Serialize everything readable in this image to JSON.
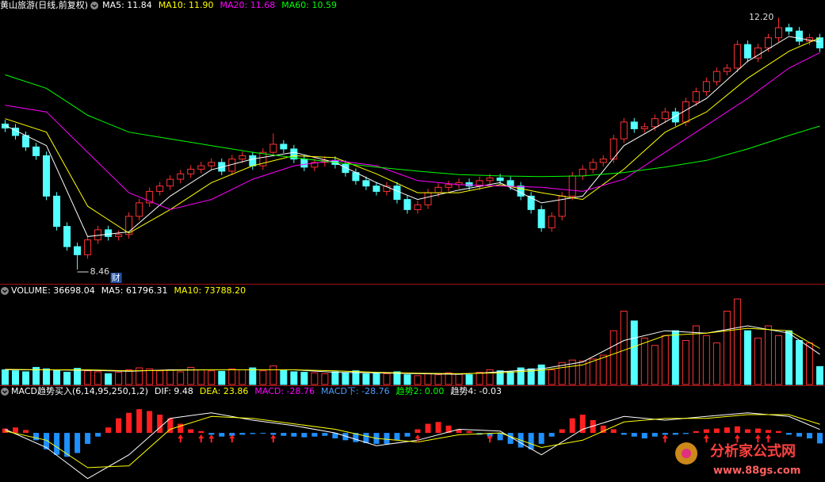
{
  "chart_data": [
    {
      "type": "candlestick",
      "title": "黄山旅游(日线,前复权)",
      "legend": [
        {
          "text": "MA5: 11.84",
          "color": "#ffffff"
        },
        {
          "text": "MA10: 11.90",
          "color": "#ffff00"
        },
        {
          "text": "MA20: 11.68",
          "color": "#ff00ff"
        },
        {
          "text": "MA60: 10.59",
          "color": "#00ff00"
        }
      ],
      "open": [
        10.62,
        10.56,
        10.45,
        10.28,
        10.15,
        9.55,
        9.1,
        8.8,
        8.68,
        8.9,
        9.05,
        8.95,
        8.98,
        9.25,
        9.45,
        9.62,
        9.7,
        9.8,
        9.88,
        9.95,
        10.0,
        10.05,
        9.92,
        10.1,
        10.15,
        10.0,
        10.2,
        10.32,
        10.25,
        10.1,
        9.98,
        10.05,
        10.08,
        10.02,
        9.9,
        9.78,
        9.7,
        9.62,
        9.7,
        9.5,
        9.35,
        9.42,
        9.6,
        9.68,
        9.72,
        9.75,
        9.7,
        9.78,
        9.82,
        9.78,
        9.7,
        9.55,
        9.35,
        9.08,
        9.25,
        9.55,
        9.85,
        9.95,
        10.05,
        10.1,
        10.4,
        10.65,
        10.55,
        10.58,
        10.7,
        10.8,
        10.65,
        10.95,
        11.1,
        11.25,
        11.4,
        11.45,
        11.8,
        11.6,
        11.75,
        11.9,
        12.05,
        12.0,
        11.85,
        11.9
      ],
      "high": [
        10.68,
        10.62,
        10.51,
        10.34,
        10.21,
        9.61,
        9.16,
        8.86,
        8.96,
        9.11,
        9.11,
        9.04,
        9.31,
        9.51,
        9.68,
        9.76,
        9.86,
        9.94,
        10.01,
        10.06,
        10.11,
        10.11,
        10.16,
        10.21,
        10.21,
        10.26,
        10.48,
        10.38,
        10.31,
        10.16,
        10.11,
        10.14,
        10.14,
        10.08,
        9.96,
        9.84,
        9.76,
        9.76,
        9.76,
        9.56,
        9.48,
        9.66,
        9.74,
        9.78,
        9.81,
        9.81,
        9.84,
        9.88,
        9.88,
        9.84,
        9.76,
        9.61,
        9.41,
        9.31,
        9.61,
        9.91,
        10.01,
        10.11,
        10.16,
        10.46,
        10.71,
        10.71,
        10.64,
        10.76,
        10.86,
        10.86,
        11.01,
        11.16,
        11.31,
        11.46,
        11.51,
        11.86,
        11.86,
        11.81,
        11.96,
        12.2,
        12.11,
        12.06,
        11.96,
        11.96
      ],
      "low": [
        10.5,
        10.39,
        10.22,
        10.09,
        9.49,
        9.04,
        8.74,
        8.46,
        8.62,
        8.84,
        8.89,
        8.89,
        8.92,
        9.19,
        9.39,
        9.56,
        9.64,
        9.74,
        9.82,
        9.89,
        9.94,
        9.86,
        9.86,
        10.04,
        9.94,
        9.94,
        10.14,
        10.19,
        10.04,
        9.92,
        9.92,
        9.99,
        9.96,
        9.84,
        9.72,
        9.64,
        9.56,
        9.56,
        9.44,
        9.29,
        9.29,
        9.36,
        9.54,
        9.62,
        9.66,
        9.64,
        9.64,
        9.72,
        9.72,
        9.64,
        9.49,
        9.29,
        9.02,
        9.02,
        9.19,
        9.49,
        9.79,
        9.89,
        9.99,
        10.04,
        10.34,
        10.49,
        10.49,
        10.52,
        10.64,
        10.59,
        10.59,
        10.89,
        11.04,
        11.19,
        11.34,
        11.39,
        11.54,
        11.54,
        11.69,
        11.84,
        11.94,
        11.79,
        11.79,
        11.69
      ],
      "close": [
        10.56,
        10.45,
        10.28,
        10.15,
        9.55,
        9.1,
        8.8,
        8.68,
        8.9,
        9.05,
        8.95,
        8.98,
        9.25,
        9.45,
        9.62,
        9.7,
        9.8,
        9.88,
        9.95,
        10.0,
        10.05,
        9.92,
        10.1,
        10.15,
        10.0,
        10.2,
        10.32,
        10.25,
        10.1,
        9.98,
        10.05,
        10.08,
        10.02,
        9.9,
        9.78,
        9.7,
        9.62,
        9.7,
        9.5,
        9.35,
        9.42,
        9.6,
        9.68,
        9.72,
        9.75,
        9.7,
        9.78,
        9.82,
        9.78,
        9.7,
        9.55,
        9.35,
        9.08,
        9.25,
        9.55,
        9.85,
        9.95,
        10.05,
        10.1,
        10.4,
        10.65,
        10.55,
        10.58,
        10.7,
        10.8,
        10.65,
        10.95,
        11.1,
        11.25,
        11.4,
        11.45,
        11.8,
        11.6,
        11.75,
        11.9,
        12.05,
        12.0,
        11.85,
        11.9,
        11.75
      ],
      "up_color": "#ff3232",
      "down_color": "#54ffff",
      "ylim": [
        8.26,
        12.32
      ],
      "ma_lines": [
        {
          "color": "#ffffff",
          "x": [
            0,
            4,
            8,
            12,
            16,
            20,
            24,
            28,
            32,
            36,
            40,
            44,
            48,
            52,
            56,
            60,
            64,
            68,
            72,
            76,
            79
          ],
          "values": [
            10.6,
            10.3,
            8.95,
            9.02,
            9.55,
            9.94,
            10.1,
            10.2,
            10.05,
            9.75,
            9.5,
            9.64,
            9.75,
            9.45,
            9.55,
            10.3,
            10.65,
            11.0,
            11.55,
            11.92,
            11.84
          ]
        },
        {
          "color": "#ffff00",
          "x": [
            0,
            4,
            8,
            12,
            16,
            20,
            24,
            28,
            32,
            36,
            40,
            44,
            48,
            52,
            56,
            60,
            64,
            68,
            72,
            76,
            79
          ],
          "values": [
            10.7,
            10.5,
            9.4,
            9.0,
            9.35,
            9.75,
            10.0,
            10.15,
            10.12,
            9.88,
            9.6,
            9.6,
            9.72,
            9.6,
            9.5,
            9.95,
            10.5,
            10.8,
            11.3,
            11.7,
            11.9
          ]
        },
        {
          "color": "#ff00ff",
          "x": [
            0,
            4,
            8,
            12,
            16,
            20,
            24,
            28,
            32,
            36,
            40,
            44,
            48,
            52,
            56,
            60,
            64,
            68,
            72,
            76,
            79
          ],
          "values": [
            10.9,
            10.8,
            10.2,
            9.6,
            9.35,
            9.5,
            9.8,
            10.0,
            10.08,
            10.0,
            9.78,
            9.72,
            9.7,
            9.68,
            9.62,
            9.8,
            10.2,
            10.6,
            11.0,
            11.45,
            11.68
          ]
        },
        {
          "color": "#00ff00",
          "x": [
            0,
            4,
            8,
            12,
            16,
            20,
            24,
            28,
            32,
            36,
            40,
            44,
            48,
            52,
            56,
            60,
            64,
            68,
            72,
            76,
            79
          ],
          "values": [
            11.35,
            11.15,
            10.75,
            10.5,
            10.4,
            10.3,
            10.2,
            10.12,
            10.05,
            9.98,
            9.92,
            9.87,
            9.85,
            9.84,
            9.85,
            9.9,
            9.98,
            10.08,
            10.25,
            10.45,
            10.59
          ]
        }
      ],
      "high_label": "12.20",
      "low_label": "8.46",
      "marker": "财"
    },
    {
      "type": "volume",
      "legend": [
        {
          "text": "VOLUME: 36698.04",
          "color": "#ffffff"
        },
        {
          "text": "MA5: 61796.31",
          "color": "#ffffff"
        },
        {
          "text": "MA10: 73788.20",
          "color": "#ffff00"
        }
      ],
      "values": [
        30000,
        28000,
        26000,
        35000,
        32000,
        30000,
        25000,
        33000,
        28000,
        26000,
        22000,
        25000,
        30000,
        34000,
        32000,
        28000,
        30000,
        26000,
        35000,
        30000,
        28000,
        27000,
        32000,
        30000,
        34000,
        28000,
        38000,
        30000,
        26000,
        25000,
        24000,
        22000,
        26000,
        24000,
        28000,
        22000,
        24000,
        22000,
        26000,
        20000,
        18000,
        22000,
        20000,
        24000,
        22000,
        20000,
        25000,
        30000,
        28000,
        26000,
        34000,
        32000,
        40000,
        30000,
        45000,
        50000,
        48000,
        52000,
        60000,
        110000,
        150000,
        130000,
        95000,
        80000,
        100000,
        110000,
        90000,
        120000,
        100000,
        85000,
        150000,
        175000,
        110000,
        95000,
        120000,
        100000,
        110000,
        90000,
        85000,
        36698.04
      ],
      "ylim": [
        0,
        180000
      ],
      "ma_lines": [
        {
          "color": "#ffffff",
          "x": [
            0,
            4,
            8,
            12,
            16,
            20,
            24,
            28,
            32,
            36,
            40,
            44,
            48,
            52,
            56,
            60,
            64,
            68,
            72,
            76,
            79
          ],
          "values": [
            30000,
            30000,
            29000,
            27000,
            30000,
            30000,
            30000,
            30000,
            25000,
            24000,
            22000,
            21000,
            26000,
            32000,
            46000,
            90000,
            110000,
            105000,
            120000,
            105000,
            61796.31
          ]
        },
        {
          "color": "#ffff00",
          "x": [
            0,
            4,
            8,
            12,
            16,
            20,
            24,
            28,
            32,
            36,
            40,
            44,
            48,
            52,
            56,
            60,
            64,
            68,
            72,
            76,
            79
          ],
          "values": [
            31000,
            30000,
            30000,
            28000,
            29000,
            30000,
            30000,
            30000,
            28000,
            25000,
            23000,
            22000,
            24000,
            29000,
            40000,
            70000,
            100000,
            105000,
            115000,
            110000,
            73788.2
          ]
        }
      ]
    },
    {
      "type": "macd",
      "legend": [
        {
          "text": "MACD趋势买入(6,14,95,250,1,2)",
          "color": "#ffffff"
        },
        {
          "text": "DIF: 9.48",
          "color": "#ffffff"
        },
        {
          "text": "DEA: 23.86",
          "color": "#ffff00"
        },
        {
          "text": "MACD: -28.76",
          "color": "#ff00ff"
        },
        {
          "text": "MACD下: -28.76",
          "color": "#4c9cff"
        },
        {
          "text": "趋势2: 0.00",
          "color": "#00ff00"
        },
        {
          "text": "趋势4: -0.03",
          "color": "#ffffff"
        }
      ],
      "values": [
        12,
        15,
        8,
        -20,
        -45,
        -60,
        -65,
        -55,
        -30,
        -10,
        15,
        40,
        55,
        65,
        60,
        50,
        40,
        25,
        10,
        5,
        -5,
        -10,
        -8,
        -5,
        -3,
        -2,
        -5,
        -8,
        -10,
        -12,
        -10,
        -8,
        -15,
        -20,
        -25,
        -28,
        -30,
        -30,
        -20,
        -10,
        10,
        25,
        30,
        20,
        10,
        5,
        -5,
        -10,
        -20,
        -30,
        -40,
        -45,
        -30,
        -10,
        10,
        40,
        50,
        35,
        20,
        10,
        -5,
        -10,
        -15,
        -10,
        -5,
        -5,
        -3,
        5,
        10,
        12,
        15,
        18,
        10,
        12,
        8,
        5,
        -5,
        -10,
        -15,
        -28.76
      ],
      "up_color": "#ff2020",
      "down_color": "#1e90ff",
      "ylim": [
        -130,
        100
      ],
      "lines": [
        {
          "color": "#ffffff",
          "x": [
            0,
            4,
            8,
            12,
            16,
            20,
            24,
            28,
            32,
            36,
            40,
            44,
            48,
            52,
            56,
            60,
            64,
            68,
            72,
            76,
            79
          ],
          "values": [
            10,
            -40,
            -125,
            -60,
            40,
            55,
            35,
            20,
            0,
            -35,
            -20,
            10,
            5,
            -60,
            10,
            45,
            35,
            45,
            55,
            45,
            9.48
          ]
        },
        {
          "color": "#ffff00",
          "x": [
            0,
            4,
            8,
            12,
            16,
            20,
            24,
            28,
            32,
            36,
            40,
            44,
            48,
            52,
            56,
            60,
            64,
            68,
            72,
            76,
            79
          ],
          "values": [
            5,
            -20,
            -95,
            -90,
            10,
            45,
            40,
            25,
            10,
            -15,
            -25,
            -5,
            0,
            -40,
            -20,
            30,
            40,
            40,
            50,
            50,
            23.86
          ]
        }
      ],
      "signals": {
        "color": "#ff2020",
        "x": [
          17,
          19,
          20,
          22,
          26,
          40,
          47,
          64,
          68,
          71,
          73,
          74
        ]
      }
    }
  ],
  "watermark": [
    "分析家公式网",
    "www.88gs.com"
  ]
}
